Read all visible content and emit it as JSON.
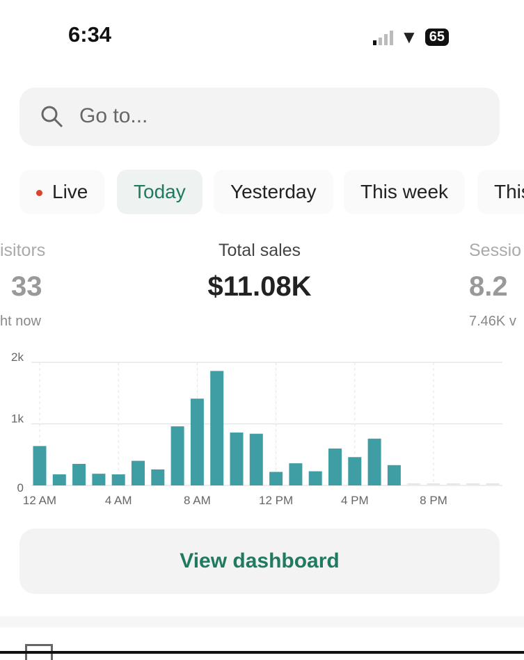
{
  "status_bar": {
    "time": "6:34",
    "battery": "65"
  },
  "search": {
    "placeholder": "Go to..."
  },
  "tabs": [
    {
      "label": "Live"
    },
    {
      "label": "Today",
      "active": true
    },
    {
      "label": "Yesterday"
    },
    {
      "label": "This week"
    },
    {
      "label": "This"
    }
  ],
  "metrics": [
    {
      "label": "isitors",
      "value": "33",
      "sub": "ht now"
    },
    {
      "label": "Total sales",
      "value": "$11.08K"
    },
    {
      "label": "Sessio",
      "value": "8.2",
      "sub": "7.46K v"
    }
  ],
  "chart_data": {
    "type": "bar",
    "x": [
      "12 AM",
      "1 AM",
      "2 AM",
      "3 AM",
      "4 AM",
      "5 AM",
      "6 AM",
      "7 AM",
      "8 AM",
      "9 AM",
      "10 AM",
      "11 AM",
      "12 PM",
      "1 PM",
      "2 PM",
      "3 PM",
      "4 PM",
      "5 PM",
      "6 PM",
      "7 PM",
      "8 PM",
      "9 PM",
      "10 PM",
      "11 PM"
    ],
    "values": [
      640,
      180,
      350,
      190,
      180,
      400,
      260,
      960,
      1410,
      1860,
      860,
      840,
      220,
      360,
      230,
      600,
      460,
      760,
      330,
      0,
      0,
      0,
      0,
      0
    ],
    "x_ticks": [
      "12 AM",
      "4 AM",
      "8 AM",
      "12 PM",
      "4 PM",
      "8 PM"
    ],
    "y_ticks": [
      "0",
      "1k",
      "2k"
    ],
    "ylim": [
      0,
      2000
    ],
    "grid": true,
    "color": "#3f9ea3"
  },
  "view_dashboard": {
    "label": "View dashboard"
  },
  "colors": {
    "accent": "#1f7a5f",
    "live_dot": "#d9452b"
  }
}
